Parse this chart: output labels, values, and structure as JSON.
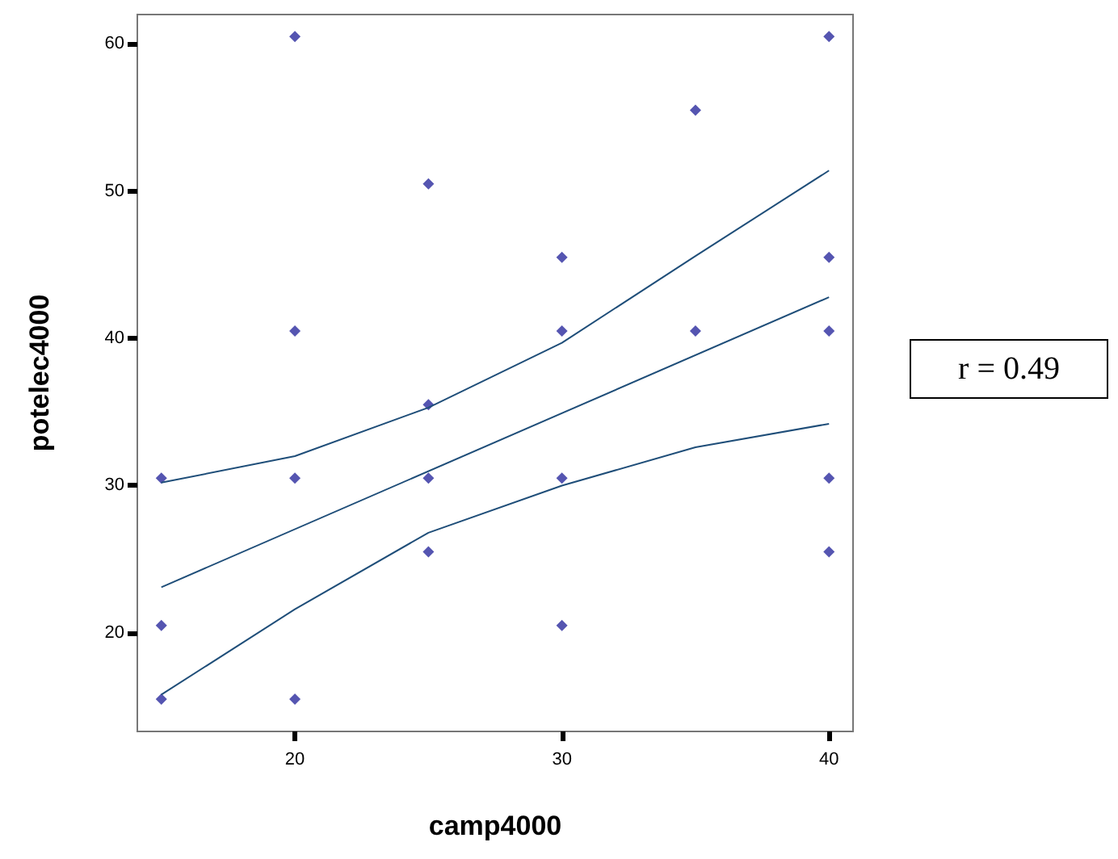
{
  "chart_data": {
    "type": "scatter",
    "xlabel": "camp4000",
    "ylabel": "potelec4000",
    "xlim": [
      14.1,
      40.9
    ],
    "ylim": [
      13.3,
      62
    ],
    "xticks": [
      20,
      30,
      40
    ],
    "yticks": [
      20,
      30,
      40,
      50,
      60
    ],
    "grid": false,
    "annotations": [
      "r = 0.49"
    ],
    "series": [
      {
        "color": "#2b2b9e",
        "marker": "diamond",
        "x": [
          15,
          15,
          15,
          20,
          20,
          20,
          20,
          25,
          25,
          25,
          25,
          30,
          30,
          30,
          30,
          35,
          35,
          40,
          40,
          40,
          40,
          40
        ],
        "values": [
          30.5,
          20.5,
          15.5,
          60.5,
          40.5,
          30.5,
          15.5,
          50.5,
          35.5,
          30.5,
          25.5,
          45.5,
          40.5,
          30.5,
          20.5,
          55.5,
          40.5,
          60.5,
          45.5,
          40.5,
          30.5,
          25.5
        ]
      },
      {
        "type": "line",
        "color": "#1f4e79",
        "marker": "none",
        "x": [
          15,
          40
        ],
        "values": [
          23.1,
          42.8
        ]
      },
      {
        "type": "line",
        "color": "#1f4e79",
        "marker": "none",
        "x": [
          15,
          20,
          25,
          30,
          35,
          40
        ],
        "values": [
          30.2,
          32.0,
          35.3,
          39.7,
          45.6,
          51.4
        ]
      },
      {
        "type": "line",
        "color": "#1f4e79",
        "marker": "none",
        "x": [
          15,
          20,
          25,
          30,
          35,
          40
        ],
        "values": [
          15.8,
          21.6,
          26.8,
          30.0,
          32.6,
          34.2
        ]
      }
    ]
  }
}
